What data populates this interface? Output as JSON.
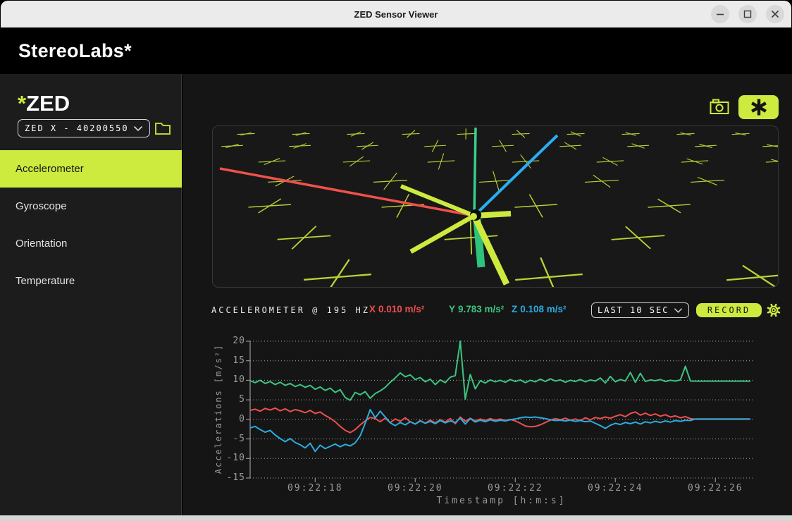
{
  "window": {
    "title": "ZED Sensor Viewer"
  },
  "brand": {
    "name": "StereoLabs",
    "star": "*"
  },
  "sidebar": {
    "title_star": "*",
    "title": "ZED",
    "camera_select": {
      "value": "ZED X - 40200550"
    },
    "items": [
      {
        "label": "Accelerometer",
        "selected": true
      },
      {
        "label": "Gyroscope",
        "selected": false
      },
      {
        "label": "Orientation",
        "selected": false
      },
      {
        "label": "Temperature",
        "selected": false
      }
    ]
  },
  "status": {
    "sensor_label": "ACCELEROMETER @ 195 HZ",
    "values": {
      "x": {
        "axis": "X",
        "text": "0.010 m/s²",
        "color": "#ef4f4d"
      },
      "y": {
        "axis": "Y",
        "text": "9.783 m/s²",
        "color": "#3cc47f"
      },
      "z": {
        "axis": "Z",
        "text": "0.108 m/s²",
        "color": "#2aacdf"
      }
    },
    "range_select": {
      "value": "LAST 10 SEC"
    },
    "record_label": "RECORD"
  },
  "colors": {
    "accent": "#cdea3e",
    "grid3d": "#b9d335",
    "axis_x_red": "#f1504b",
    "axis_y_green": "#2ec27d",
    "axis_z_blue": "#28aef5",
    "titlebar": "#ebebeb",
    "panel": "#1c1c1c",
    "canvas": "#181818"
  },
  "chart_data": {
    "type": "line",
    "title": "",
    "xlabel": "Timestamp [h:m:s]",
    "ylabel": "Accelerations [m/s²]",
    "ylim": [
      -15,
      20
    ],
    "yticks": [
      20,
      15,
      10,
      5,
      0,
      -5,
      -10,
      -15
    ],
    "xtick_labels": [
      "09:22:18",
      "09:22:20",
      "09:22:22",
      "09:22:24",
      "09:22:26"
    ],
    "xtick_t": [
      1.3,
      3.3,
      5.3,
      7.3,
      9.3
    ],
    "t_start": 0.0,
    "t_step": 0.1,
    "grid": true,
    "legend": "none",
    "series": [
      {
        "name": "X",
        "color": "#ef4f4d",
        "values": [
          2.3,
          2.6,
          2.1,
          2.8,
          2.4,
          2.9,
          2.2,
          2.7,
          2.0,
          2.5,
          2.2,
          1.7,
          2.3,
          1.5,
          1.9,
          1.0,
          0.3,
          -0.6,
          -1.8,
          -2.8,
          -3.4,
          -2.6,
          -1.4,
          -0.4,
          0.5,
          0.2,
          -0.6,
          0.3,
          -0.8,
          0.1,
          -0.5,
          0.4,
          -0.6,
          -1.2,
          -0.3,
          -1.0,
          -0.2,
          -0.9,
          -0.1,
          -0.7,
          0.2,
          -1.1,
          0.6,
          -0.5,
          0.3,
          -0.4,
          0.1,
          -0.3,
          0.2,
          -0.2,
          0.1,
          -0.3,
          0.0,
          -0.4,
          -1.0,
          -1.7,
          -1.9,
          -1.8,
          -1.4,
          -0.8,
          -0.2,
          0.2,
          -0.1,
          0.3,
          -0.2,
          0.1,
          -0.3,
          0.4,
          -0.1,
          0.5,
          0.2,
          0.6,
          0.3,
          0.8,
          1.2,
          0.7,
          1.5,
          1.9,
          1.1,
          1.6,
          1.0,
          1.4,
          0.8,
          1.2,
          0.6,
          0.9,
          0.4,
          0.7,
          0.2,
          0.05,
          0.05,
          0.05,
          0.05,
          0.05,
          0.05,
          0.05,
          0.05,
          0.05,
          0.05,
          0.05,
          0.05
        ]
      },
      {
        "name": "Y",
        "color": "#3cc47f",
        "values": [
          9.9,
          9.4,
          10.0,
          9.2,
          9.7,
          8.9,
          9.5,
          8.7,
          9.2,
          8.4,
          8.9,
          8.2,
          8.7,
          7.7,
          8.3,
          7.4,
          8.0,
          6.9,
          7.6,
          5.6,
          4.9,
          6.9,
          6.3,
          7.1,
          5.4,
          6.6,
          7.3,
          8.2,
          9.5,
          10.6,
          11.9,
          10.9,
          11.4,
          10.2,
          10.7,
          9.6,
          10.3,
          8.9,
          10.1,
          9.4,
          10.8,
          11.2,
          20.0,
          5.2,
          11.5,
          7.8,
          9.9,
          9.3,
          10.1,
          9.6,
          10.0,
          9.5,
          10.2,
          9.7,
          10.1,
          9.4,
          10.0,
          9.6,
          10.3,
          9.7,
          10.4,
          9.8,
          10.1,
          9.5,
          10.0,
          9.7,
          10.2,
          9.6,
          10.1,
          9.8,
          10.6,
          9.3,
          11.0,
          9.6,
          10.2,
          9.8,
          12.0,
          9.5,
          11.8,
          9.7,
          10.1,
          9.9,
          10.2,
          9.7,
          10.0,
          9.8,
          10.1,
          13.6,
          9.8,
          9.78,
          9.78,
          9.78,
          9.78,
          9.78,
          9.78,
          9.78,
          9.78,
          9.78,
          9.78,
          9.78,
          9.78
        ]
      },
      {
        "name": "Z",
        "color": "#2aacdf",
        "values": [
          -2.2,
          -1.8,
          -2.6,
          -3.3,
          -2.8,
          -4.0,
          -4.9,
          -5.7,
          -4.9,
          -5.9,
          -6.5,
          -7.3,
          -6.1,
          -8.2,
          -6.6,
          -7.5,
          -6.9,
          -6.3,
          -7.0,
          -6.4,
          -6.8,
          -6.0,
          -4.2,
          -1.0,
          2.5,
          0.4,
          2.1,
          0.6,
          -0.9,
          -1.6,
          -0.8,
          -1.4,
          -0.6,
          -1.2,
          -0.4,
          -1.0,
          -0.5,
          -1.1,
          -0.3,
          -0.9,
          -0.4,
          -0.8,
          0.3,
          -1.2,
          0.2,
          -0.7,
          -0.2,
          -0.6,
          -0.1,
          -0.5,
          -0.2,
          -0.4,
          -0.1,
          0.1,
          0.4,
          0.6,
          0.5,
          0.6,
          0.4,
          0.2,
          -0.1,
          -0.3,
          -0.2,
          -0.4,
          -0.2,
          -0.5,
          -0.3,
          -0.6,
          -0.4,
          -1.0,
          -1.6,
          -2.3,
          -1.5,
          -1.0,
          -1.3,
          -0.8,
          -1.1,
          -0.7,
          -1.2,
          -0.6,
          -0.9,
          -0.5,
          -0.8,
          -0.4,
          -0.7,
          -0.3,
          -0.5,
          -0.2,
          -0.3,
          0.11,
          0.11,
          0.11,
          0.11,
          0.11,
          0.11,
          0.11,
          0.11,
          0.11,
          0.11,
          0.11,
          0.11
        ]
      }
    ]
  }
}
